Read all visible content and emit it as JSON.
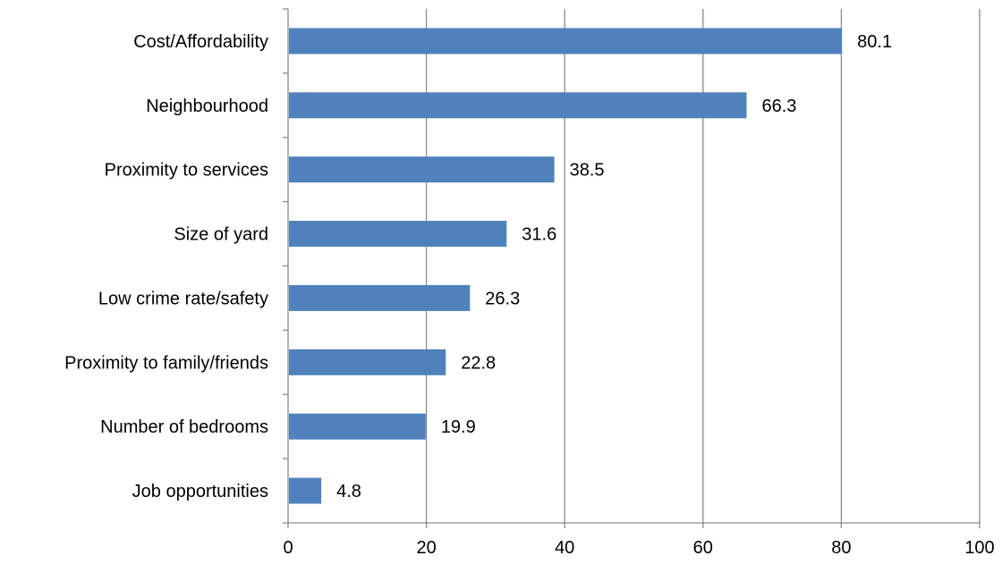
{
  "chart_data": {
    "type": "bar",
    "orientation": "horizontal",
    "title": "",
    "xlabel": "",
    "ylabel": "",
    "categories": [
      "Cost/Affordability",
      "Neighbourhood",
      "Proximity to services",
      "Size of yard",
      "Low crime rate/safety",
      "Proximity to family/friends",
      "Number of bedrooms",
      "Job opportunities"
    ],
    "values": [
      80.1,
      66.3,
      38.5,
      31.6,
      26.3,
      22.8,
      19.9,
      4.8
    ],
    "data_labels": [
      "80.1",
      "66.3",
      "38.5",
      "31.6",
      "26.3",
      "22.8",
      "19.9",
      "4.8"
    ],
    "xlim": [
      0,
      100
    ],
    "xticks": [
      0,
      20,
      40,
      60,
      80,
      100
    ],
    "xtick_labels": [
      "0",
      "20",
      "40",
      "60",
      "80",
      "100"
    ],
    "grid": "vertical",
    "legend": "none",
    "bar_color": "#4f81bd",
    "grid_color": "#8c8c8c",
    "axis_color": "#8c8c8c"
  }
}
